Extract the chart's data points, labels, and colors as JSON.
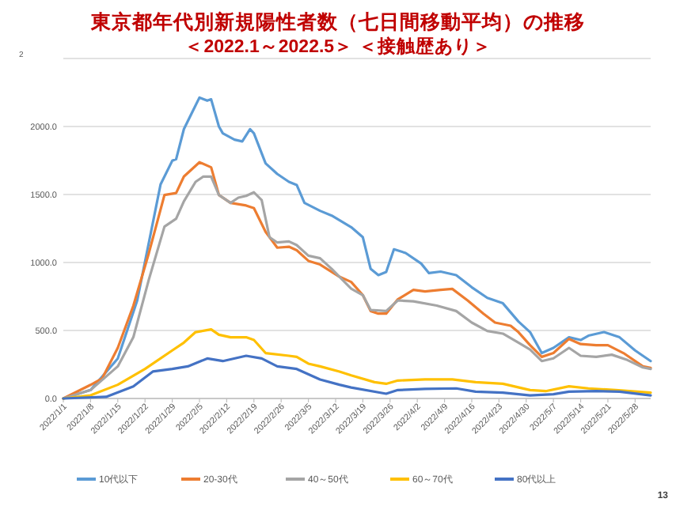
{
  "chart_data": {
    "type": "line",
    "title": "東京都年代別新規陽性者数（七日間移動平均）の推移",
    "subtitle": "＜2022.1～2022.5＞ ＜接触歴あり＞",
    "xlim": [
      "2022-01-01",
      "2022-06-01"
    ],
    "xticks": [
      {
        "value": "2022-01-01",
        "label": "2022/1/1"
      },
      {
        "value": "2022-01-08",
        "label": "2022/1/8"
      },
      {
        "value": "2022-01-15",
        "label": "2022/1/15"
      },
      {
        "value": "2022-01-22",
        "label": "2022/1/22"
      },
      {
        "value": "2022-01-29",
        "label": "2022/1/29"
      },
      {
        "value": "2022-02-05",
        "label": "2022/2/5"
      },
      {
        "value": "2022-02-12",
        "label": "2022/2/12"
      },
      {
        "value": "2022-02-19",
        "label": "2022/2/19"
      },
      {
        "value": "2022-02-26",
        "label": "2022/2/26"
      },
      {
        "value": "2022-03-05",
        "label": "2022/3/5"
      },
      {
        "value": "2022-03-12",
        "label": "2022/3/12"
      },
      {
        "value": "2022-03-19",
        "label": "2022/3/19"
      },
      {
        "value": "2022-03-26",
        "label": "2022/3/26"
      },
      {
        "value": "2022-04-02",
        "label": "2022/4/2"
      },
      {
        "value": "2022-04-09",
        "label": "2022/4/9"
      },
      {
        "value": "2022-04-16",
        "label": "2022/4/16"
      },
      {
        "value": "2022-04-23",
        "label": "2022/4/23"
      },
      {
        "value": "2022-04-30",
        "label": "2022/4/30"
      },
      {
        "value": "2022-05-07",
        "label": "2022/5/7"
      },
      {
        "value": "2022-05-14",
        "label": "2022/5/14"
      },
      {
        "value": "2022-05-21",
        "label": "2022/5/21"
      },
      {
        "value": "2022-05-28",
        "label": "2022/5/28"
      }
    ],
    "ylim": [
      0,
      2500
    ],
    "yticks": [
      {
        "value": 0,
        "label": "0.0"
      },
      {
        "value": 500,
        "label": "500.0"
      },
      {
        "value": 1000,
        "label": "1000.0"
      },
      {
        "value": 1500,
        "label": "1500.0"
      },
      {
        "value": 2000,
        "label": "2000.0"
      },
      {
        "value": 2500,
        "label": null
      }
    ],
    "grid": "y",
    "legend": "bottom",
    "marker": "none",
    "line_style": "solid",
    "annotations": [
      "2",
      "13"
    ],
    "series": [
      {
        "name": "10代以下",
        "color": "#5b9bd5",
        "x": [
          "2022-01-01",
          "2022-01-08",
          "2022-01-15",
          "2022-01-20",
          "2022-01-26",
          "2022-01-29",
          "2022-01-30",
          "2022-02-01",
          "2022-02-03",
          "2022-02-05",
          "2022-02-07",
          "2022-02-08",
          "2022-02-10",
          "2022-02-11",
          "2022-02-14",
          "2022-02-16",
          "2022-02-18",
          "2022-02-19",
          "2022-02-22",
          "2022-02-25",
          "2022-02-28",
          "2022-03-02",
          "2022-03-04",
          "2022-03-08",
          "2022-03-11",
          "2022-03-16",
          "2022-03-19",
          "2022-03-21",
          "2022-03-23",
          "2022-03-25",
          "2022-03-27",
          "2022-03-30",
          "2022-04-03",
          "2022-04-05",
          "2022-04-08",
          "2022-04-12",
          "2022-04-16",
          "2022-04-20",
          "2022-04-24",
          "2022-04-28",
          "2022-05-01",
          "2022-05-04",
          "2022-05-07",
          "2022-05-11",
          "2022-05-14",
          "2022-05-16",
          "2022-05-20",
          "2022-05-24",
          "2022-05-28",
          "2022-06-01"
        ],
        "values": [
          0,
          62,
          294,
          721,
          1574,
          1748,
          1760,
          1981,
          2097,
          2213,
          2190,
          2200,
          2000,
          1950,
          1903,
          1890,
          1980,
          1950,
          1729,
          1651,
          1593,
          1570,
          1438,
          1380,
          1345,
          1260,
          1186,
          954,
          907,
          930,
          1097,
          1070,
          992,
          922,
          933,
          907,
          818,
          740,
          700,
          566,
          488,
          334,
          372,
          450,
          430,
          462,
          488,
          450,
          353,
          275
        ]
      },
      {
        "name": "20-30代",
        "color": "#ed7d31",
        "x": [
          "2022-01-01",
          "2022-01-08",
          "2022-01-11",
          "2022-01-15",
          "2022-01-19",
          "2022-01-23",
          "2022-01-27",
          "2022-01-30",
          "2022-02-01",
          "2022-02-05",
          "2022-02-08",
          "2022-02-10",
          "2022-02-13",
          "2022-02-17",
          "2022-02-19",
          "2022-02-22",
          "2022-02-25",
          "2022-02-28",
          "2022-03-02",
          "2022-03-05",
          "2022-03-08",
          "2022-03-13",
          "2022-03-16",
          "2022-03-19",
          "2022-03-21",
          "2022-03-23",
          "2022-03-25",
          "2022-03-28",
          "2022-04-01",
          "2022-04-04",
          "2022-04-08",
          "2022-04-11",
          "2022-04-15",
          "2022-04-19",
          "2022-04-22",
          "2022-04-26",
          "2022-04-28",
          "2022-05-01",
          "2022-05-04",
          "2022-05-07",
          "2022-05-11",
          "2022-05-14",
          "2022-05-18",
          "2022-05-21",
          "2022-05-25",
          "2022-05-30",
          "2022-06-01"
        ],
        "values": [
          0,
          100,
          148,
          372,
          682,
          1070,
          1496,
          1511,
          1632,
          1737,
          1700,
          1496,
          1438,
          1419,
          1400,
          1225,
          1109,
          1116,
          1090,
          1012,
          985,
          895,
          857,
          760,
          643,
          624,
          624,
          729,
          799,
          787,
          799,
          806,
          720,
          624,
          558,
          535,
          488,
          392,
          306,
          334,
          438,
          400,
          392,
          392,
          334,
          236,
          225
        ]
      },
      {
        "name": "40～50代",
        "color": "#a5a5a5",
        "x": [
          "2022-01-01",
          "2022-01-08",
          "2022-01-15",
          "2022-01-19",
          "2022-01-23",
          "2022-01-27",
          "2022-01-30",
          "2022-02-01",
          "2022-02-04",
          "2022-02-06",
          "2022-02-08",
          "2022-02-10",
          "2022-02-13",
          "2022-02-15",
          "2022-02-17",
          "2022-02-19",
          "2022-02-21",
          "2022-02-23",
          "2022-02-25",
          "2022-02-28",
          "2022-03-02",
          "2022-03-05",
          "2022-03-08",
          "2022-03-11",
          "2022-03-16",
          "2022-03-19",
          "2022-03-21",
          "2022-03-25",
          "2022-03-28",
          "2022-04-01",
          "2022-04-07",
          "2022-04-12",
          "2022-04-16",
          "2022-04-20",
          "2022-04-24",
          "2022-04-28",
          "2022-05-01",
          "2022-05-04",
          "2022-05-07",
          "2022-05-11",
          "2022-05-14",
          "2022-05-18",
          "2022-05-22",
          "2022-05-26",
          "2022-05-30",
          "2022-06-01"
        ],
        "values": [
          0,
          62,
          236,
          450,
          876,
          1264,
          1322,
          1450,
          1593,
          1632,
          1632,
          1496,
          1438,
          1477,
          1490,
          1516,
          1458,
          1186,
          1147,
          1155,
          1128,
          1050,
          1031,
          953,
          808,
          760,
          651,
          643,
          721,
          714,
          683,
          643,
          558,
          496,
          477,
          411,
          360,
          275,
          295,
          372,
          314,
          306,
          322,
          283,
          228,
          217
        ]
      },
      {
        "name": "60～70代",
        "color": "#ffc000",
        "x": [
          "2022-01-01",
          "2022-01-08",
          "2022-01-15",
          "2022-01-22",
          "2022-01-29",
          "2022-02-01",
          "2022-02-04",
          "2022-02-08",
          "2022-02-10",
          "2022-02-13",
          "2022-02-17",
          "2022-02-19",
          "2022-02-22",
          "2022-02-28",
          "2022-03-02",
          "2022-03-05",
          "2022-03-08",
          "2022-03-13",
          "2022-03-16",
          "2022-03-22",
          "2022-03-25",
          "2022-03-28",
          "2022-04-04",
          "2022-04-11",
          "2022-04-17",
          "2022-04-24",
          "2022-05-01",
          "2022-05-05",
          "2022-05-11",
          "2022-05-16",
          "2022-05-23",
          "2022-06-01"
        ],
        "values": [
          0,
          23,
          101,
          217,
          353,
          411,
          488,
          508,
          469,
          450,
          450,
          430,
          334,
          314,
          306,
          256,
          236,
          198,
          170,
          120,
          108,
          132,
          140,
          140,
          120,
          108,
          62,
          54,
          89,
          74,
          62,
          43
        ]
      },
      {
        "name": "80代以上",
        "color": "#4472c4",
        "x": [
          "2022-01-01",
          "2022-01-12",
          "2022-01-19",
          "2022-01-24",
          "2022-01-29",
          "2022-02-02",
          "2022-02-07",
          "2022-02-11",
          "2022-02-17",
          "2022-02-21",
          "2022-02-25",
          "2022-03-02",
          "2022-03-08",
          "2022-03-13",
          "2022-03-16",
          "2022-03-25",
          "2022-03-28",
          "2022-04-04",
          "2022-04-12",
          "2022-04-17",
          "2022-04-24",
          "2022-05-01",
          "2022-05-07",
          "2022-05-11",
          "2022-05-18",
          "2022-05-24",
          "2022-06-01"
        ],
        "values": [
          0,
          12,
          89,
          198,
          217,
          236,
          294,
          275,
          314,
          294,
          236,
          217,
          140,
          101,
          81,
          35,
          62,
          70,
          74,
          50,
          43,
          23,
          31,
          50,
          54,
          50,
          23
        ]
      }
    ]
  }
}
